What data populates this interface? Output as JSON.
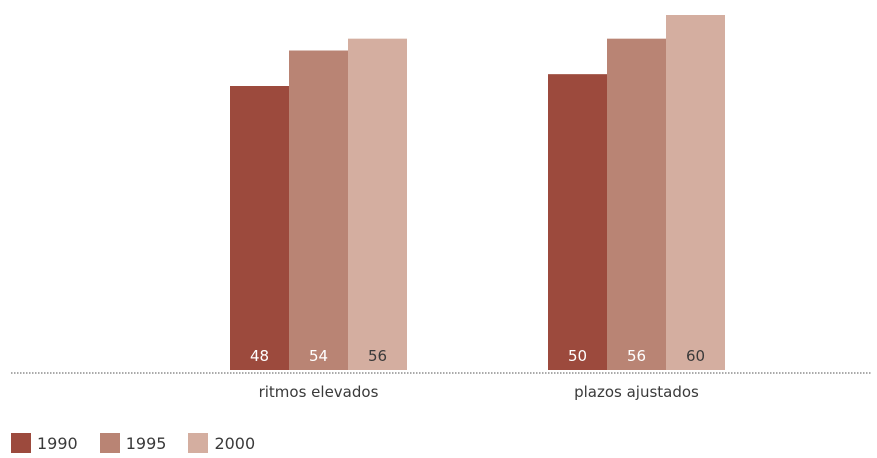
{
  "chart_data": {
    "type": "bar",
    "categories": [
      "ritmos elevados",
      "plazos ajustados"
    ],
    "series": [
      {
        "name": "1990",
        "values": [
          48,
          50
        ],
        "color": "#9c4a3d",
        "label_color": "#ffffff"
      },
      {
        "name": "1995",
        "values": [
          54,
          56
        ],
        "color": "#b98474",
        "label_color": "#ffffff"
      },
      {
        "name": "2000",
        "values": [
          56,
          60
        ],
        "color": "#d4aea0",
        "label_color": "#3a3a3a"
      }
    ],
    "title": "",
    "xlabel": "",
    "ylabel": "",
    "ylim": [
      0,
      60
    ],
    "grid": false,
    "legend_position": "bottom-left"
  }
}
